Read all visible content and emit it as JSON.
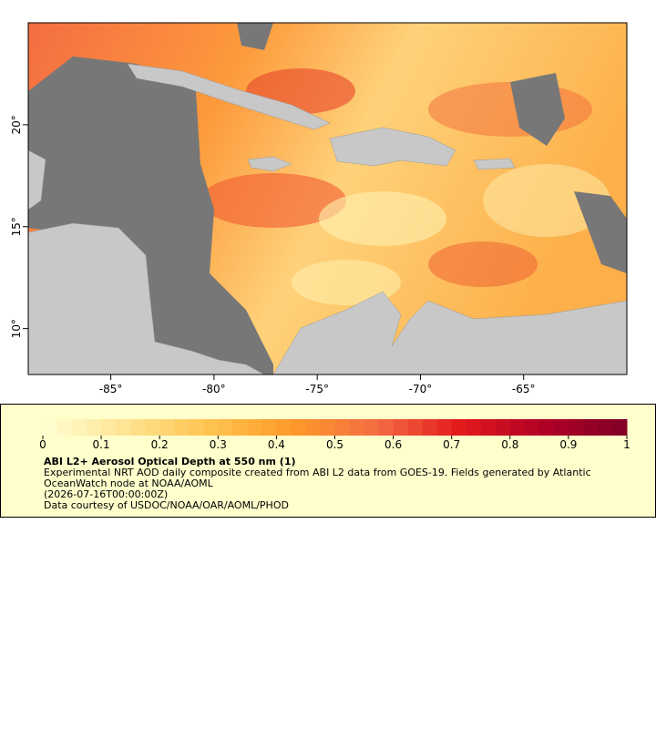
{
  "chart_data": {
    "type": "map",
    "xlim": [
      -89,
      -60
    ],
    "ylim": [
      7.75,
      25
    ],
    "xticks": [
      {
        "value": -85,
        "label": "-85°"
      },
      {
        "value": -80,
        "label": "-80°"
      },
      {
        "value": -75,
        "label": "-75°"
      },
      {
        "value": -70,
        "label": "-70°"
      },
      {
        "value": -65,
        "label": "-65°"
      }
    ],
    "yticks": [
      {
        "value": 10,
        "label": "10°"
      },
      {
        "value": 15,
        "label": "15°"
      },
      {
        "value": 20,
        "label": "20°"
      }
    ],
    "colorbar": {
      "lim": [
        0,
        1
      ],
      "ticks": [
        0,
        0.1,
        0.2,
        0.3,
        0.4,
        0.5,
        0.6,
        0.7,
        0.8,
        0.9,
        1
      ],
      "colors": [
        "#ffffd4",
        "#fee391",
        "#fec44f",
        "#fe9929",
        "#f46d43",
        "#e31a1c",
        "#b10026",
        "#800026"
      ]
    },
    "legend": {
      "title": "ABI L2+ Aerosol Optical Depth at 550 nm (1)",
      "lines": [
        "Experimental NRT AOD daily composite created from ABI L2 data from GOES-19. Fields generated by Atlantic",
        "OceanWatch node at NOAA/AOML",
        "(2026-07-16T00:00:00Z)",
        "Data courtesy of USDOC/NOAA/OAR/AOML/PHOD"
      ]
    }
  }
}
